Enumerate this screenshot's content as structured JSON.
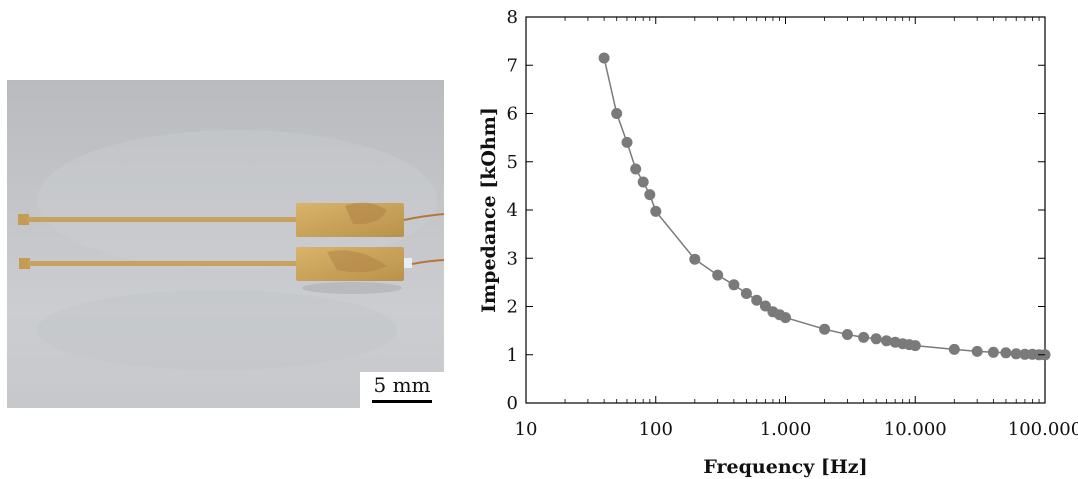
{
  "photo": {
    "description_icon": "photo-of-two-flexible-electrodes",
    "scale_bar_label": "5 mm"
  },
  "chart_data": {
    "type": "scatter",
    "title": "",
    "xlabel": "Frequency [Hz]",
    "ylabel": "Impedance [kOhm]",
    "x_scale": "log",
    "xlim": [
      10,
      100000
    ],
    "ylim": [
      0,
      8
    ],
    "x_ticks": [
      10,
      100,
      1000,
      10000,
      100000
    ],
    "x_tick_labels": [
      "10",
      "100",
      "1.000",
      "10.000",
      "100.000"
    ],
    "y_ticks": [
      0,
      1,
      2,
      3,
      4,
      5,
      6,
      7,
      8
    ],
    "y_tick_labels": [
      "0",
      "1",
      "2",
      "3",
      "4",
      "5",
      "6",
      "7",
      "8"
    ],
    "grid": false,
    "marker_color": "#7a7a7a",
    "line_color": "#7a7a7a",
    "series": [
      {
        "x": [
          40,
          50,
          60,
          70,
          80,
          90,
          100,
          200,
          300,
          400,
          500,
          600,
          700,
          800,
          900,
          1000,
          2000,
          3000,
          4000,
          5000,
          6000,
          7000,
          8000,
          9000,
          10000,
          20000,
          30000,
          40000,
          50000,
          60000,
          70000,
          80000,
          90000,
          100000
        ],
        "y": [
          7.15,
          6.0,
          5.4,
          4.85,
          4.58,
          4.32,
          3.97,
          2.98,
          2.65,
          2.45,
          2.27,
          2.13,
          2.01,
          1.89,
          1.83,
          1.77,
          1.53,
          1.42,
          1.36,
          1.33,
          1.29,
          1.26,
          1.23,
          1.21,
          1.19,
          1.11,
          1.07,
          1.05,
          1.04,
          1.02,
          1.01,
          1.01,
          1.0,
          1.0
        ]
      }
    ]
  }
}
